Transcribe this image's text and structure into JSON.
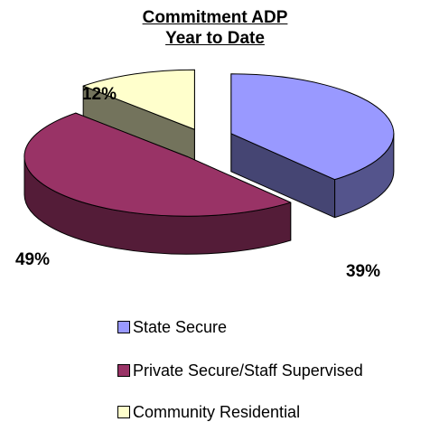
{
  "chart_data": {
    "type": "pie",
    "title": "Commitment ADP",
    "subtitle": "Year to Date",
    "slices": [
      {
        "label": "State Secure",
        "value": 39,
        "display": "39%",
        "color": "#9999ff"
      },
      {
        "label": "Private Secure/Staff Supervised",
        "value": 49,
        "display": "49%",
        "color": "#993366"
      },
      {
        "label": "Community Residential",
        "value": 12,
        "display": "12%",
        "color": "#ffffcc"
      }
    ],
    "legend_position": "bottom",
    "style": "3d-exploded"
  }
}
